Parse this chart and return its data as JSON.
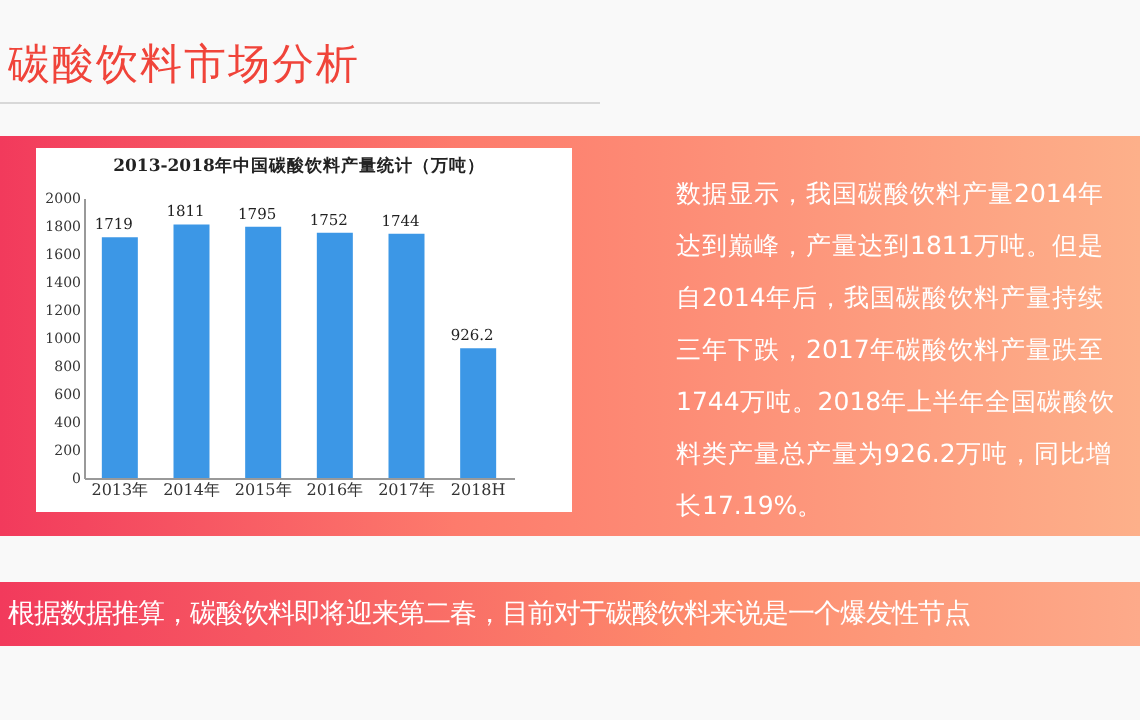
{
  "chart_data": {
    "type": "bar",
    "title": "碳酸饮料市场分析",
    "subtitle": "2013-2018年中国碳酸饮料产量统计（万吨）",
    "categories": [
      "2013年",
      "2014年",
      "2015年",
      "2016年",
      "2017年",
      "2018H"
    ],
    "values": [
      1719,
      1811,
      1795,
      1752,
      1744,
      926.2
    ],
    "color": "#3c97e6",
    "data_labels": true,
    "grid": false,
    "ylim": [
      0,
      2000
    ],
    "yticks": [
      0,
      200,
      400,
      600,
      800,
      1000,
      1200,
      1400,
      1600,
      1800,
      2000
    ],
    "annotations": [
      "数据显示，我国碳酸饮料产量2014年达到巅峰，产量达到1811万吨。但是自2014年后，我国碳酸饮料产量持续三年下跌，2017年碳酸饮料产量跌至1744万吨。2018年上半年全国碳酸饮料类产量总产量为926.2万吨，同比增长17.19%。",
      "根据数据推算，碳酸饮料即将迎来第二春，目前对于碳酸饮料来说是一个爆发性节点"
    ]
  }
}
